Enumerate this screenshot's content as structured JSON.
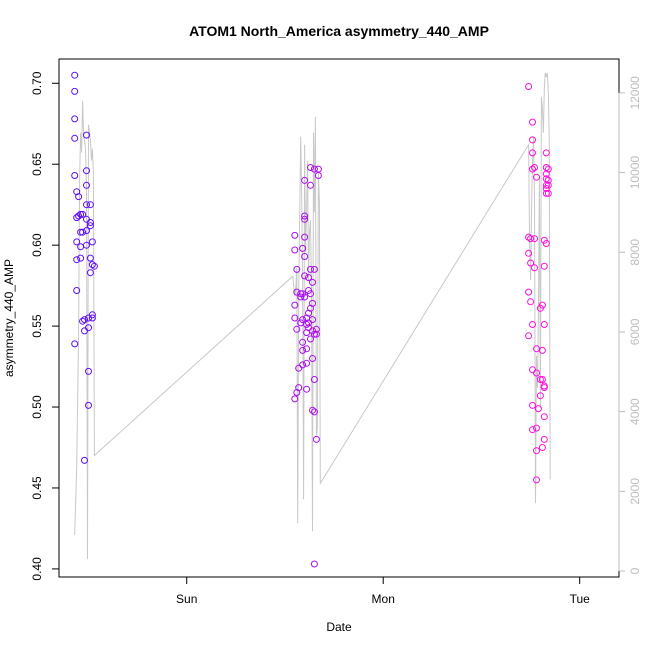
{
  "chart_data": {
    "type": "scatter",
    "title": "ATOM1 North_America asymmetry_440_AMP",
    "xlabel": "Date",
    "ylabel": "asymmetry_440_AMP",
    "y_ticks": [
      0.4,
      0.45,
      0.5,
      0.55,
      0.6,
      0.65,
      0.7
    ],
    "y_tick_labels": [
      "0.40",
      "0.45",
      "0.50",
      "0.55",
      "0.60",
      "0.65",
      "0.70"
    ],
    "ylim": [
      0.395,
      0.715
    ],
    "x_unit": "days since Sat 00:00",
    "xlim": [
      0.35,
      3.2
    ],
    "x_ticks": [
      1,
      2,
      3
    ],
    "x_tick_labels": [
      "Sun",
      "Mon",
      "Tue"
    ],
    "y2_ticks": [
      0,
      2000,
      4000,
      6000,
      8000,
      10000,
      12000
    ],
    "y2_tick_labels": [
      "0",
      "2000",
      "4000",
      "6000",
      "8000",
      "10000",
      "12000"
    ],
    "y2lim": [
      -150,
      12850
    ],
    "line_color": "#c8c8c8",
    "color_start": "#5a0fff",
    "color_end": "#ff10dd",
    "points": [
      {
        "x": 0.43,
        "y": 0.705
      },
      {
        "x": 0.43,
        "y": 0.695
      },
      {
        "x": 0.43,
        "y": 0.678
      },
      {
        "x": 0.43,
        "y": 0.666
      },
      {
        "x": 0.43,
        "y": 0.643
      },
      {
        "x": 0.44,
        "y": 0.633
      },
      {
        "x": 0.44,
        "y": 0.617
      },
      {
        "x": 0.45,
        "y": 0.618
      },
      {
        "x": 0.44,
        "y": 0.602
      },
      {
        "x": 0.44,
        "y": 0.591
      },
      {
        "x": 0.44,
        "y": 0.572
      },
      {
        "x": 0.43,
        "y": 0.539
      },
      {
        "x": 0.45,
        "y": 0.63
      },
      {
        "x": 0.46,
        "y": 0.619
      },
      {
        "x": 0.46,
        "y": 0.608
      },
      {
        "x": 0.46,
        "y": 0.599
      },
      {
        "x": 0.46,
        "y": 0.592
      },
      {
        "x": 0.47,
        "y": 0.619
      },
      {
        "x": 0.47,
        "y": 0.608
      },
      {
        "x": 0.47,
        "y": 0.553
      },
      {
        "x": 0.48,
        "y": 0.554
      },
      {
        "x": 0.48,
        "y": 0.547
      },
      {
        "x": 0.48,
        "y": 0.467
      },
      {
        "x": 0.49,
        "y": 0.668
      },
      {
        "x": 0.49,
        "y": 0.646
      },
      {
        "x": 0.49,
        "y": 0.637
      },
      {
        "x": 0.49,
        "y": 0.625
      },
      {
        "x": 0.49,
        "y": 0.616
      },
      {
        "x": 0.49,
        "y": 0.609
      },
      {
        "x": 0.49,
        "y": 0.6
      },
      {
        "x": 0.5,
        "y": 0.555
      },
      {
        "x": 0.5,
        "y": 0.549
      },
      {
        "x": 0.5,
        "y": 0.522
      },
      {
        "x": 0.5,
        "y": 0.501
      },
      {
        "x": 0.51,
        "y": 0.625
      },
      {
        "x": 0.51,
        "y": 0.614
      },
      {
        "x": 0.51,
        "y": 0.612
      },
      {
        "x": 0.51,
        "y": 0.592
      },
      {
        "x": 0.51,
        "y": 0.583
      },
      {
        "x": 0.52,
        "y": 0.557
      },
      {
        "x": 0.52,
        "y": 0.555
      },
      {
        "x": 0.52,
        "y": 0.588
      },
      {
        "x": 0.53,
        "y": 0.587
      },
      {
        "x": 0.52,
        "y": 0.602
      },
      {
        "x": 1.55,
        "y": 0.606
      },
      {
        "x": 1.55,
        "y": 0.597
      },
      {
        "x": 1.55,
        "y": 0.563
      },
      {
        "x": 1.55,
        "y": 0.555
      },
      {
        "x": 1.56,
        "y": 0.585
      },
      {
        "x": 1.56,
        "y": 0.571
      },
      {
        "x": 1.56,
        "y": 0.548
      },
      {
        "x": 1.55,
        "y": 0.505
      },
      {
        "x": 1.56,
        "y": 0.509
      },
      {
        "x": 1.57,
        "y": 0.512
      },
      {
        "x": 1.57,
        "y": 0.524
      },
      {
        "x": 1.58,
        "y": 0.57
      },
      {
        "x": 1.58,
        "y": 0.568
      },
      {
        "x": 1.58,
        "y": 0.552
      },
      {
        "x": 1.59,
        "y": 0.598
      },
      {
        "x": 1.59,
        "y": 0.57
      },
      {
        "x": 1.59,
        "y": 0.554
      },
      {
        "x": 1.59,
        "y": 0.54
      },
      {
        "x": 1.59,
        "y": 0.535
      },
      {
        "x": 1.59,
        "y": 0.526
      },
      {
        "x": 1.6,
        "y": 0.64
      },
      {
        "x": 1.6,
        "y": 0.616
      },
      {
        "x": 1.6,
        "y": 0.618
      },
      {
        "x": 1.6,
        "y": 0.605
      },
      {
        "x": 1.6,
        "y": 0.593
      },
      {
        "x": 1.6,
        "y": 0.581
      },
      {
        "x": 1.6,
        "y": 0.568
      },
      {
        "x": 1.61,
        "y": 0.551
      },
      {
        "x": 1.61,
        "y": 0.546
      },
      {
        "x": 1.61,
        "y": 0.536
      },
      {
        "x": 1.61,
        "y": 0.527
      },
      {
        "x": 1.61,
        "y": 0.511
      },
      {
        "x": 1.61,
        "y": 0.555
      },
      {
        "x": 1.62,
        "y": 0.58
      },
      {
        "x": 1.62,
        "y": 0.572
      },
      {
        "x": 1.62,
        "y": 0.558
      },
      {
        "x": 1.62,
        "y": 0.552
      },
      {
        "x": 1.62,
        "y": 0.549
      },
      {
        "x": 1.63,
        "y": 0.648
      },
      {
        "x": 1.63,
        "y": 0.637
      },
      {
        "x": 1.63,
        "y": 0.585
      },
      {
        "x": 1.63,
        "y": 0.57
      },
      {
        "x": 1.63,
        "y": 0.561
      },
      {
        "x": 1.63,
        "y": 0.542
      },
      {
        "x": 1.64,
        "y": 0.577
      },
      {
        "x": 1.64,
        "y": 0.564
      },
      {
        "x": 1.64,
        "y": 0.554
      },
      {
        "x": 1.64,
        "y": 0.547
      },
      {
        "x": 1.64,
        "y": 0.53
      },
      {
        "x": 1.64,
        "y": 0.498
      },
      {
        "x": 1.65,
        "y": 0.497
      },
      {
        "x": 1.65,
        "y": 0.403
      },
      {
        "x": 1.65,
        "y": 0.647
      },
      {
        "x": 1.65,
        "y": 0.585
      },
      {
        "x": 1.65,
        "y": 0.545
      },
      {
        "x": 1.65,
        "y": 0.517
      },
      {
        "x": 1.66,
        "y": 0.548
      },
      {
        "x": 1.66,
        "y": 0.545
      },
      {
        "x": 1.66,
        "y": 0.48
      },
      {
        "x": 1.67,
        "y": 0.647
      },
      {
        "x": 1.67,
        "y": 0.643
      },
      {
        "x": 2.74,
        "y": 0.698
      },
      {
        "x": 2.74,
        "y": 0.605
      },
      {
        "x": 2.74,
        "y": 0.595
      },
      {
        "x": 2.74,
        "y": 0.571
      },
      {
        "x": 2.74,
        "y": 0.544
      },
      {
        "x": 2.75,
        "y": 0.604
      },
      {
        "x": 2.75,
        "y": 0.589
      },
      {
        "x": 2.75,
        "y": 0.565
      },
      {
        "x": 2.76,
        "y": 0.676
      },
      {
        "x": 2.76,
        "y": 0.665
      },
      {
        "x": 2.76,
        "y": 0.657
      },
      {
        "x": 2.76,
        "y": 0.647
      },
      {
        "x": 2.76,
        "y": 0.551
      },
      {
        "x": 2.76,
        "y": 0.523
      },
      {
        "x": 2.76,
        "y": 0.501
      },
      {
        "x": 2.76,
        "y": 0.486
      },
      {
        "x": 2.77,
        "y": 0.648
      },
      {
        "x": 2.77,
        "y": 0.604
      },
      {
        "x": 2.77,
        "y": 0.586
      },
      {
        "x": 2.78,
        "y": 0.642
      },
      {
        "x": 2.78,
        "y": 0.536
      },
      {
        "x": 2.78,
        "y": 0.521
      },
      {
        "x": 2.78,
        "y": 0.487
      },
      {
        "x": 2.78,
        "y": 0.473
      },
      {
        "x": 2.78,
        "y": 0.455
      },
      {
        "x": 2.79,
        "y": 0.499
      },
      {
        "x": 2.8,
        "y": 0.561
      },
      {
        "x": 2.8,
        "y": 0.517
      },
      {
        "x": 2.8,
        "y": 0.507
      },
      {
        "x": 2.81,
        "y": 0.517
      },
      {
        "x": 2.81,
        "y": 0.563
      },
      {
        "x": 2.81,
        "y": 0.535
      },
      {
        "x": 2.81,
        "y": 0.475
      },
      {
        "x": 2.82,
        "y": 0.513
      },
      {
        "x": 2.82,
        "y": 0.512
      },
      {
        "x": 2.82,
        "y": 0.494
      },
      {
        "x": 2.82,
        "y": 0.48
      },
      {
        "x": 2.82,
        "y": 0.587
      },
      {
        "x": 2.82,
        "y": 0.551
      },
      {
        "x": 2.82,
        "y": 0.603
      },
      {
        "x": 2.83,
        "y": 0.601
      },
      {
        "x": 2.83,
        "y": 0.657
      },
      {
        "x": 2.83,
        "y": 0.648
      },
      {
        "x": 2.83,
        "y": 0.644
      },
      {
        "x": 2.83,
        "y": 0.641
      },
      {
        "x": 2.83,
        "y": 0.637
      },
      {
        "x": 2.83,
        "y": 0.635
      },
      {
        "x": 2.83,
        "y": 0.632
      },
      {
        "x": 2.84,
        "y": 0.647
      },
      {
        "x": 2.84,
        "y": 0.64
      },
      {
        "x": 2.84,
        "y": 0.637
      },
      {
        "x": 2.84,
        "y": 0.632
      }
    ],
    "line": [
      [
        0.43,
        900
      ],
      [
        0.44,
        2600
      ],
      [
        0.45,
        6000
      ],
      [
        0.455,
        9800
      ],
      [
        0.46,
        11000
      ],
      [
        0.465,
        10500
      ],
      [
        0.47,
        11800
      ],
      [
        0.475,
        10900
      ],
      [
        0.48,
        10800
      ],
      [
        0.485,
        10600
      ],
      [
        0.49,
        9600
      ],
      [
        0.495,
        300
      ],
      [
        0.5,
        11200
      ],
      [
        0.505,
        11000
      ],
      [
        0.51,
        10800
      ],
      [
        0.515,
        10300
      ],
      [
        0.52,
        10600
      ],
      [
        0.525,
        10000
      ],
      [
        0.53,
        2900
      ],
      [
        1.54,
        7400
      ],
      [
        1.55,
        6900
      ],
      [
        1.555,
        7100
      ],
      [
        1.56,
        7600
      ],
      [
        1.565,
        1200
      ],
      [
        1.57,
        7000
      ],
      [
        1.575,
        8900
      ],
      [
        1.58,
        10900
      ],
      [
        1.585,
        9400
      ],
      [
        1.59,
        7300
      ],
      [
        1.595,
        1800
      ],
      [
        1.6,
        10700
      ],
      [
        1.605,
        8000
      ],
      [
        1.61,
        9100
      ],
      [
        1.615,
        10300
      ],
      [
        1.62,
        7300
      ],
      [
        1.625,
        8500
      ],
      [
        1.63,
        8800
      ],
      [
        1.635,
        7000
      ],
      [
        1.64,
        1000
      ],
      [
        1.645,
        11000
      ],
      [
        1.65,
        9000
      ],
      [
        1.655,
        11400
      ],
      [
        1.66,
        3400
      ],
      [
        1.665,
        3600
      ],
      [
        1.67,
        10000
      ],
      [
        1.675,
        9300
      ],
      [
        1.68,
        2200
      ],
      [
        2.74,
        10700
      ],
      [
        2.745,
        8200
      ],
      [
        2.75,
        7300
      ],
      [
        2.755,
        9200
      ],
      [
        2.76,
        10200
      ],
      [
        2.765,
        10900
      ],
      [
        2.77,
        9400
      ],
      [
        2.775,
        1700
      ],
      [
        2.78,
        5400
      ],
      [
        2.785,
        4600
      ],
      [
        2.79,
        6400
      ],
      [
        2.795,
        9900
      ],
      [
        2.8,
        4100
      ],
      [
        2.805,
        11900
      ],
      [
        2.81,
        11600
      ],
      [
        2.815,
        11000
      ],
      [
        2.82,
        12100
      ],
      [
        2.825,
        12500
      ],
      [
        2.83,
        12400
      ],
      [
        2.835,
        12500
      ],
      [
        2.84,
        12000
      ],
      [
        2.845,
        10900
      ],
      [
        2.85,
        2300
      ]
    ]
  }
}
